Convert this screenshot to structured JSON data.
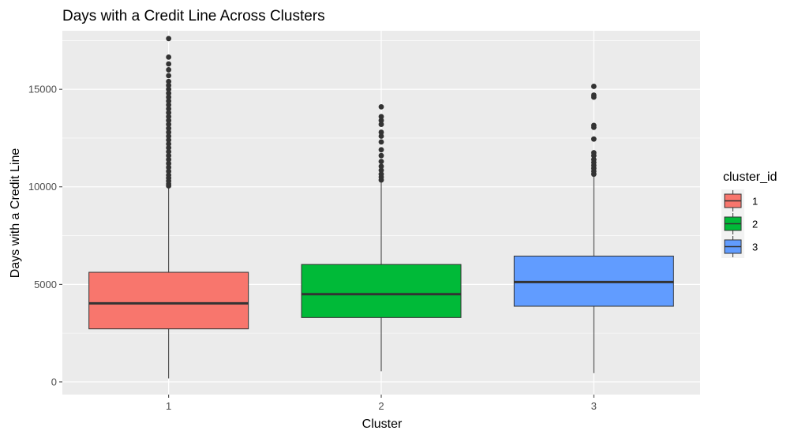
{
  "chart_data": {
    "type": "boxplot",
    "title": "Days with a Credit Line Across Clusters",
    "xlabel": "Cluster",
    "ylabel": "Days with a Credit Line",
    "categories": [
      "1",
      "2",
      "3"
    ],
    "ylim": [
      -650,
      18000
    ],
    "yticks": [
      0,
      5000,
      10000,
      15000
    ],
    "ytick_labels": [
      "0",
      "5000",
      "10000",
      "15000"
    ],
    "grid": true,
    "legend": {
      "title": "cluster_id",
      "position": "right",
      "entries": [
        "1",
        "2",
        "3"
      ]
    },
    "colors": [
      "#F8766D",
      "#00BA38",
      "#619CFF"
    ],
    "series": [
      {
        "name": "1",
        "color": "#F8766D",
        "min": 180,
        "q1": 2720,
        "median": 4030,
        "q3": 5620,
        "whisker_high": 10000,
        "outliers": [
          10050,
          10150,
          10300,
          10450,
          10600,
          10800,
          11000,
          11200,
          11400,
          11600,
          11800,
          12000,
          12200,
          12400,
          12600,
          12800,
          13000,
          13200,
          13400,
          13600,
          13800,
          14000,
          14200,
          14400,
          14600,
          14800,
          15000,
          15200,
          15400,
          15700,
          16000,
          16300,
          16650,
          17600
        ]
      },
      {
        "name": "2",
        "color": "#00BA38",
        "min": 550,
        "q1": 3300,
        "median": 4500,
        "q3": 6020,
        "whisker_high": 10250,
        "outliers": [
          10350,
          10500,
          10650,
          10850,
          11050,
          11300,
          11600,
          11900,
          12300,
          12600,
          12800,
          13200,
          13400,
          13600,
          14100
        ]
      },
      {
        "name": "3",
        "color": "#619CFF",
        "min": 450,
        "q1": 3880,
        "median": 5120,
        "q3": 6450,
        "whisker_high": 10550,
        "outliers": [
          10650,
          10800,
          10950,
          11100,
          11250,
          11400,
          11600,
          11750,
          12450,
          13050,
          13150,
          14600,
          14700,
          15150
        ]
      }
    ]
  }
}
